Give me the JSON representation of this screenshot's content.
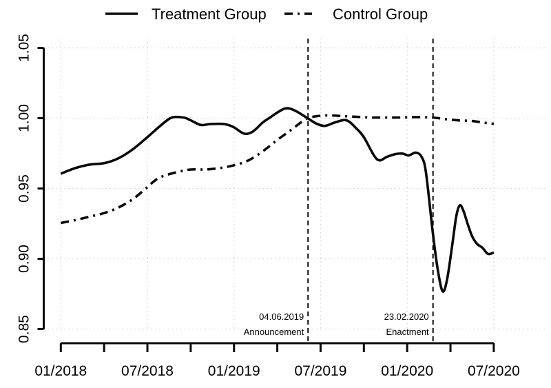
{
  "chart_data": {
    "type": "line",
    "title": "",
    "x_axis": {
      "tick_labels": [
        "01/2018",
        "07/2018",
        "01/2019",
        "07/2019",
        "01/2020",
        "07/2020"
      ],
      "labeled_tick_months": [
        0,
        6,
        12,
        18,
        24,
        30
      ],
      "minor_tick_every_months": 3,
      "range_months": [
        0,
        30
      ]
    },
    "y_axis": {
      "tick_labels": [
        "0.85",
        "0.90",
        "0.95",
        "1.00",
        "1.05"
      ],
      "ticks": [
        0.85,
        0.9,
        0.95,
        1.0,
        1.05
      ],
      "range": [
        0.85,
        1.05
      ]
    },
    "grid": {
      "style": "dotted",
      "color": "#d2d2d2",
      "horizontal_at": [
        0.85,
        0.9,
        0.95,
        1.0,
        1.05
      ],
      "vertical_at_months": [
        0,
        6,
        12,
        18,
        24,
        30
      ]
    },
    "legend": {
      "position": "top-center",
      "entries": [
        {
          "label": "Treatment Group",
          "line_style": "solid"
        },
        {
          "label": "Control Group",
          "line_style": "dash-dot"
        }
      ]
    },
    "line_color": "#0a0a0a",
    "series": [
      {
        "name": "Treatment Group",
        "line_style": "solid",
        "points_months_value": [
          [
            0,
            0.9605
          ],
          [
            1,
            0.9645
          ],
          [
            2,
            0.967
          ],
          [
            3,
            0.968
          ],
          [
            4,
            0.9715
          ],
          [
            5,
            0.978
          ],
          [
            6,
            0.9865
          ],
          [
            7,
            0.9955
          ],
          [
            7.7,
            1.0005
          ],
          [
            8.5,
            1.0005
          ],
          [
            9,
            0.9985
          ],
          [
            9.7,
            0.9952
          ],
          [
            10.3,
            0.9958
          ],
          [
            11,
            0.996
          ],
          [
            11.5,
            0.9955
          ],
          [
            12,
            0.9935
          ],
          [
            12.7,
            0.989
          ],
          [
            13.3,
            0.9905
          ],
          [
            14,
            0.997
          ],
          [
            14.5,
            1.0005
          ],
          [
            15,
            1.004
          ],
          [
            15.6,
            1.007
          ],
          [
            16.2,
            1.0055
          ],
          [
            17.1,
            1.0
          ],
          [
            17.7,
            0.9962
          ],
          [
            18.3,
            0.9945
          ],
          [
            19,
            0.997
          ],
          [
            19.8,
            0.9985
          ],
          [
            20.5,
            0.9925
          ],
          [
            21,
            0.9865
          ],
          [
            21.7,
            0.9735
          ],
          [
            22.1,
            0.97
          ],
          [
            22.6,
            0.9725
          ],
          [
            23.2,
            0.9745
          ],
          [
            23.7,
            0.9748
          ],
          [
            24.1,
            0.9735
          ],
          [
            24.6,
            0.9755
          ],
          [
            25,
            0.9725
          ],
          [
            25.3,
            0.9615
          ],
          [
            25.75,
            0.921
          ],
          [
            26.1,
            0.8935
          ],
          [
            26.45,
            0.877
          ],
          [
            26.75,
            0.8845
          ],
          [
            27.1,
            0.908
          ],
          [
            27.4,
            0.93
          ],
          [
            27.65,
            0.938
          ],
          [
            27.9,
            0.934
          ],
          [
            28.2,
            0.9245
          ],
          [
            28.5,
            0.916
          ],
          [
            28.85,
            0.9105
          ],
          [
            29.2,
            0.908
          ],
          [
            29.6,
            0.9035
          ],
          [
            30,
            0.9045
          ]
        ]
      },
      {
        "name": "Control Group",
        "line_style": "dash-dot",
        "points_months_value": [
          [
            0,
            0.9255
          ],
          [
            1,
            0.9275
          ],
          [
            2,
            0.93
          ],
          [
            3,
            0.9325
          ],
          [
            4,
            0.9365
          ],
          [
            5,
            0.9425
          ],
          [
            6,
            0.951
          ],
          [
            6.5,
            0.9555
          ],
          [
            7,
            0.9585
          ],
          [
            8,
            0.9615
          ],
          [
            9,
            0.9635
          ],
          [
            10,
            0.9635
          ],
          [
            11,
            0.9645
          ],
          [
            12,
            0.9665
          ],
          [
            13,
            0.97
          ],
          [
            14,
            0.9765
          ],
          [
            15,
            0.9845
          ],
          [
            16,
            0.992
          ],
          [
            16.7,
            0.9975
          ],
          [
            17.1,
            1.0
          ],
          [
            17.8,
            1.0015
          ],
          [
            18.6,
            1.002
          ],
          [
            19.5,
            1.0015
          ],
          [
            20.5,
            1.001
          ],
          [
            21.5,
            1.0005
          ],
          [
            22.5,
            1.0005
          ],
          [
            23.5,
            1.0005
          ],
          [
            24.5,
            1.0008
          ],
          [
            25.75,
            1.0005
          ],
          [
            26.5,
            0.9995
          ],
          [
            27.5,
            0.9985
          ],
          [
            28.5,
            0.998
          ],
          [
            29.3,
            0.9968
          ],
          [
            30,
            0.996
          ]
        ]
      }
    ],
    "events": [
      {
        "date_label": "04.06.2019",
        "caption": "Announcement",
        "month": 17.13,
        "line_style": "dashed"
      },
      {
        "date_label": "23.02.2020",
        "caption": "Enactment",
        "month": 25.79,
        "line_style": "dashed"
      }
    ]
  }
}
